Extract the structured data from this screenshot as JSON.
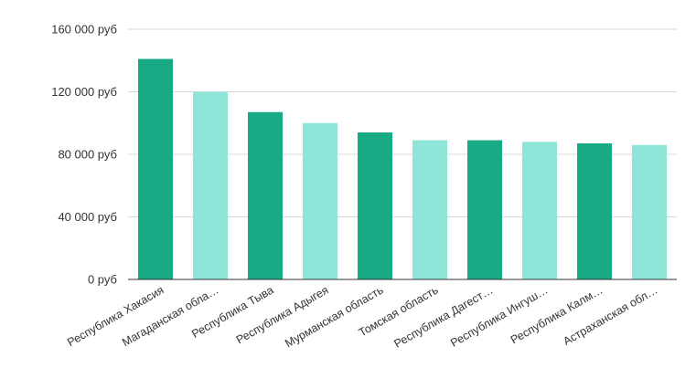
{
  "chart_data": {
    "type": "bar",
    "categories": [
      "Республика Хакасия",
      "Магаданская обла…",
      "Республика Тыва",
      "Республика Адыгея",
      "Мурманская область",
      "Томская область",
      "Республика Дагест…",
      "Республика Ингуш…",
      "Республика Калм…",
      "Астраханская обл…"
    ],
    "values": [
      141000,
      120000,
      107000,
      100000,
      94000,
      89000,
      89000,
      88000,
      87000,
      86000
    ],
    "bar_colors": [
      "#17aa85",
      "#8ee5d8",
      "#17aa85",
      "#8ee5d8",
      "#17aa85",
      "#8ee5d8",
      "#17aa85",
      "#8ee5d8",
      "#17aa85",
      "#8ee5d8"
    ],
    "yticks": [
      0,
      40000,
      80000,
      120000,
      160000
    ],
    "ytick_labels": [
      "0 руб",
      "40 000 руб",
      "80 000 руб",
      "120 000 руб",
      "160 000 руб"
    ],
    "ylim": [
      0,
      160000
    ],
    "grid": true,
    "legend": "none"
  }
}
